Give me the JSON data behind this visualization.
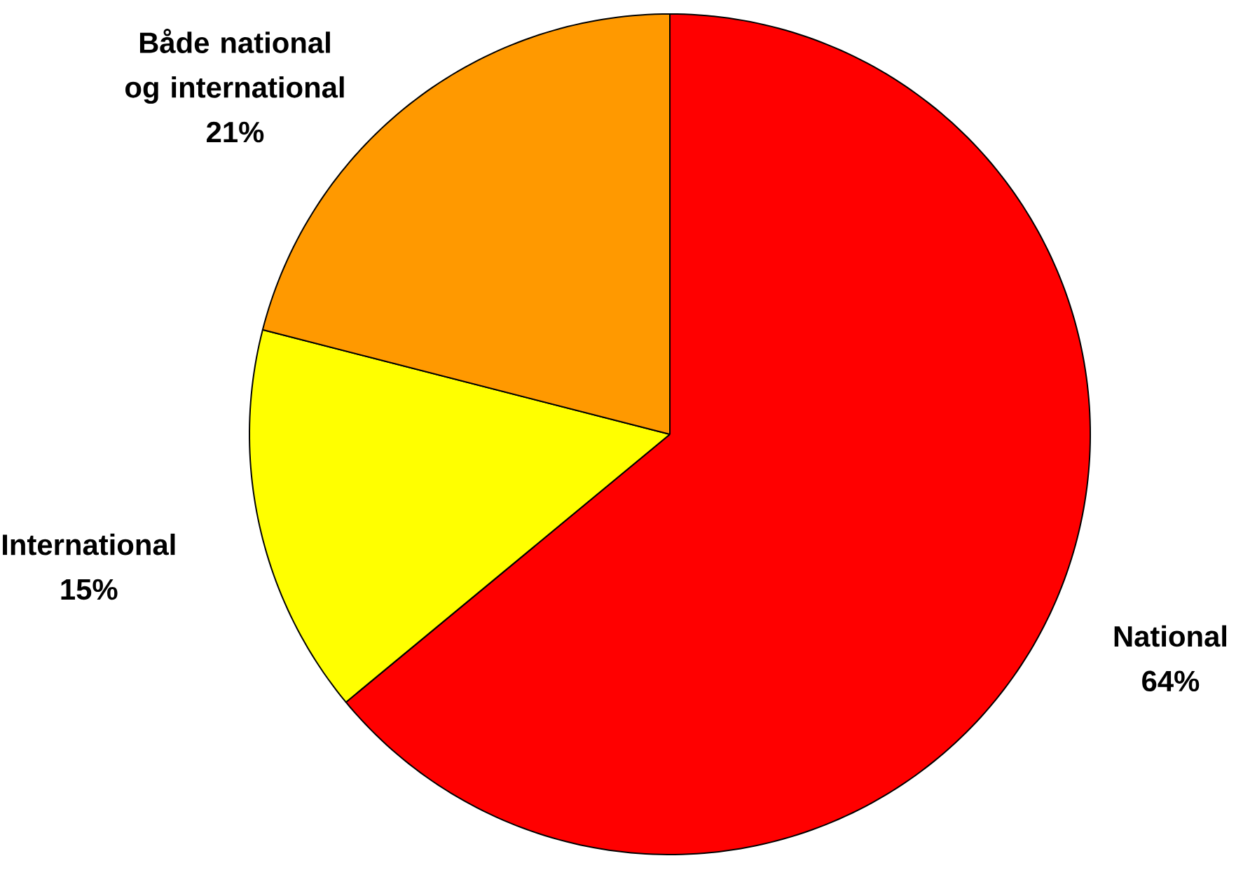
{
  "chart_data": {
    "type": "pie",
    "categories": [
      "National",
      "International",
      "Både national og international"
    ],
    "values": [
      64,
      15,
      21
    ],
    "colors": [
      "#ff0000",
      "#ffff00",
      "#ff9900"
    ],
    "value_labels": [
      "64%",
      "15%",
      "21%"
    ]
  }
}
